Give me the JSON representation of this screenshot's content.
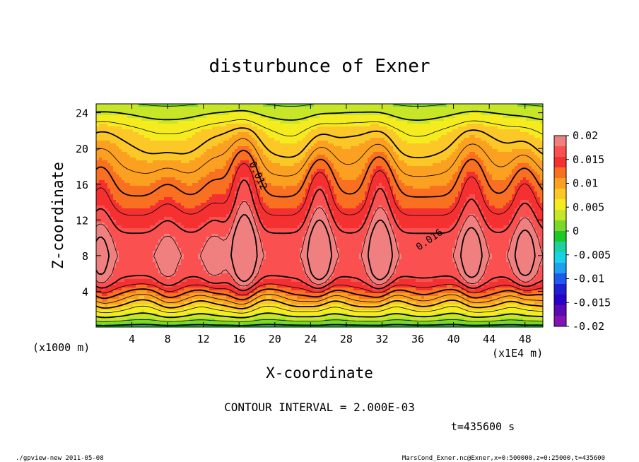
{
  "chart_data": {
    "type": "heatmap",
    "title": "disturbunce of Exner",
    "xlabel": "X-coordinate",
    "ylabel": "Z-coordinate",
    "x_unit": "(x1E4 m)",
    "y_unit": "(x1000 m)",
    "xlim": [
      0,
      50
    ],
    "ylim": [
      0,
      25
    ],
    "xticks": [
      4,
      8,
      12,
      16,
      20,
      24,
      28,
      32,
      36,
      40,
      44,
      48
    ],
    "yticks": [
      4,
      8,
      12,
      16,
      20,
      24
    ],
    "contour_interval_text": "CONTOUR INTERVAL = 2.000E-03",
    "time_text": "t=435600 s",
    "contour_labels": [
      {
        "text": "0.012",
        "x": 17.8,
        "y": 16.8
      },
      {
        "text": "0.016",
        "x": 37.5,
        "y": 9.5
      }
    ],
    "colorbar": {
      "labels": [
        "0.02",
        "0.015",
        "0.01",
        "0.005",
        "0",
        "-0.005",
        "-0.01",
        "-0.015",
        "-0.02"
      ],
      "colors": [
        "#f08080",
        "#fa5050",
        "#f53030",
        "#f87020",
        "#fba020",
        "#fcc828",
        "#f5ec20",
        "#c8e628",
        "#7ad828",
        "#1ec828",
        "#1ed2a0",
        "#18d2e8",
        "#1ea0f0",
        "#1e5af0",
        "#1e1ed2",
        "#2800c8",
        "#5a0ab4",
        "#8214b4"
      ]
    },
    "field_profile": {
      "z": [
        0,
        1,
        2,
        3,
        4,
        5,
        6,
        8,
        10,
        12,
        14,
        16,
        18,
        20,
        22,
        23,
        24,
        25
      ],
      "value": [
        -0.001,
        0.003,
        0.006,
        0.009,
        0.012,
        0.015,
        0.0165,
        0.0175,
        0.0165,
        0.0145,
        0.0125,
        0.011,
        0.0095,
        0.008,
        0.0065,
        0.005,
        0.0035,
        0.002
      ]
    },
    "plumes": [
      {
        "x": 16.6,
        "z": 8.5,
        "amp": 0.008
      },
      {
        "x": 25.0,
        "z": 8.2,
        "amp": 0.007
      },
      {
        "x": 31.8,
        "z": 8.2,
        "amp": 0.007
      },
      {
        "x": 42.0,
        "z": 8.0,
        "amp": 0.0055
      },
      {
        "x": 48.0,
        "z": 8.0,
        "amp": 0.005
      },
      {
        "x": 0.5,
        "z": 7.5,
        "amp": 0.004
      },
      {
        "x": 8.0,
        "z": 7.0,
        "amp": 0.002
      },
      {
        "x": 13.2,
        "z": 7.0,
        "amp": 0.002
      }
    ]
  },
  "footer": {
    "left": "./gpview-new  2011-05-08",
    "right": "MarsCond_Exner.nc@Exner,x=0:500000,z=0:25000,t=435600"
  }
}
